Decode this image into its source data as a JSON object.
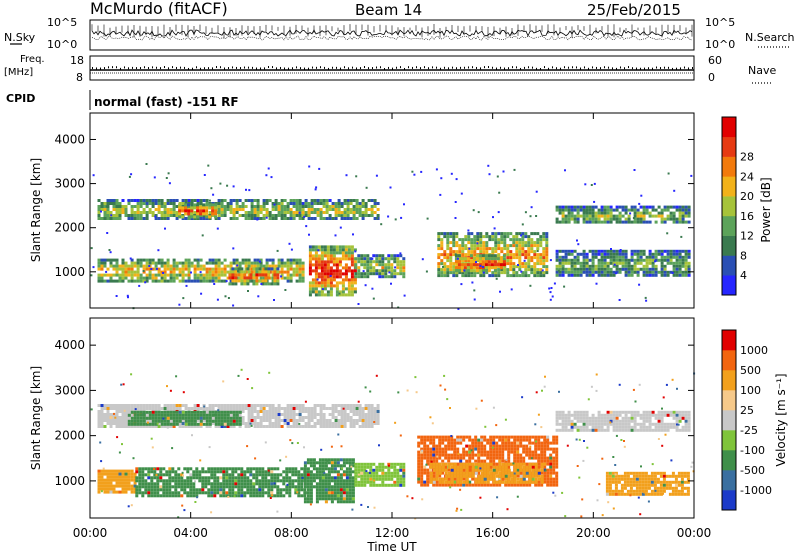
{
  "header": {
    "station": "McMurdo (fitACF)",
    "beam": "Beam 14",
    "date": "25/Feb/2015"
  },
  "summary_panels": {
    "nsky_label": "N.Sky",
    "nsearch_label": "N.Search",
    "scale_top": "10^5",
    "scale_bottom": "10^0",
    "freq_label_1": "Freq.",
    "freq_label_2": "[MHz]",
    "freq_ticks": [
      "18",
      "8"
    ],
    "nave_label": "Nave",
    "nave_ticks": [
      "60",
      "0"
    ],
    "cpid_label": "CPID",
    "cpid_value": "normal (fast) -151 RF"
  },
  "chart_data": [
    {
      "type": "heatmap",
      "name": "Power",
      "xlabel": "Time UT",
      "ylabel": "Slant Range [km]",
      "xlim": [
        "00:00",
        "24:00"
      ],
      "x_ticks": [
        "00:00",
        "04:00",
        "08:00",
        "12:00",
        "16:00",
        "20:00",
        "00:00"
      ],
      "ylim": [
        180,
        4600
      ],
      "y_ticks": [
        "1000",
        "2000",
        "3000",
        "4000"
      ],
      "colorbar": {
        "label": "Power [dB]",
        "ticks": [
          "4",
          "8",
          "12",
          "16",
          "20",
          "24",
          "28"
        ],
        "colors": [
          "#2626ff",
          "#2a4fb4",
          "#3a7a4f",
          "#5ca35a",
          "#a6c33a",
          "#f2b21a",
          "#f27a0c",
          "#e63a12",
          "#e10000"
        ]
      },
      "bands": [
        {
          "t0": 0.3,
          "t1": 11.5,
          "r0": 2200,
          "r1": 2650,
          "level": 0.55
        },
        {
          "t0": 3.5,
          "t1": 5.0,
          "r0": 2250,
          "r1": 2550,
          "level": 0.95
        },
        {
          "t0": 0.3,
          "t1": 8.5,
          "r0": 800,
          "r1": 1300,
          "level": 0.7
        },
        {
          "t0": 5.5,
          "t1": 7.5,
          "r0": 750,
          "r1": 1100,
          "level": 0.9
        },
        {
          "t0": 8.7,
          "t1": 10.5,
          "r0": 500,
          "r1": 1600,
          "level": 1.0
        },
        {
          "t0": 10.5,
          "t1": 12.5,
          "r0": 900,
          "r1": 1400,
          "level": 0.55
        },
        {
          "t0": 13.8,
          "t1": 18.2,
          "r0": 900,
          "r1": 1900,
          "level": 0.75
        },
        {
          "t0": 14.5,
          "t1": 16.5,
          "r0": 1000,
          "r1": 1400,
          "level": 0.92
        },
        {
          "t0": 18.5,
          "t1": 23.8,
          "r0": 2100,
          "r1": 2500,
          "level": 0.45
        },
        {
          "t0": 18.5,
          "t1": 23.8,
          "r0": 900,
          "r1": 1500,
          "level": 0.4
        }
      ]
    },
    {
      "type": "heatmap",
      "name": "Velocity",
      "xlabel": "Time UT",
      "ylabel": "Slant Range [km]",
      "xlim": [
        "00:00",
        "24:00"
      ],
      "x_ticks": [
        "00:00",
        "04:00",
        "08:00",
        "12:00",
        "16:00",
        "20:00",
        "00:00"
      ],
      "ylim": [
        180,
        4600
      ],
      "y_ticks": [
        "1000",
        "2000",
        "3000",
        "4000"
      ],
      "colorbar": {
        "label": "Velocity [m s⁻¹]",
        "ticks": [
          "1000",
          "500",
          "100",
          "25",
          "-25",
          "-100",
          "-500",
          "-1000"
        ],
        "colors": [
          "#1b3ac9",
          "#3a6fa0",
          "#3f8f4a",
          "#7fc43a",
          "#c8c8c8",
          "#f6c98a",
          "#f2a01c",
          "#f2650f",
          "#e10000"
        ]
      },
      "bands": [
        {
          "t0": 0.3,
          "t1": 11.5,
          "r0": 2200,
          "r1": 2700,
          "color": "#c8c8c8"
        },
        {
          "t0": 1.5,
          "t1": 6.0,
          "r0": 2250,
          "r1": 2550,
          "color": "#3f8f4a"
        },
        {
          "t0": 0.3,
          "t1": 1.8,
          "r0": 750,
          "r1": 1250,
          "color": "#f2a01c"
        },
        {
          "t0": 1.8,
          "t1": 8.5,
          "r0": 650,
          "r1": 1300,
          "color": "#3f8f4a"
        },
        {
          "t0": 8.5,
          "t1": 10.5,
          "r0": 550,
          "r1": 1500,
          "color": "#3f8f4a"
        },
        {
          "t0": 10.5,
          "t1": 12.5,
          "r0": 900,
          "r1": 1400,
          "color": "#7fc43a"
        },
        {
          "t0": 13.0,
          "t1": 18.5,
          "r0": 900,
          "r1": 2000,
          "color": "#f2650f"
        },
        {
          "t0": 13.5,
          "t1": 18.0,
          "r0": 1000,
          "r1": 1400,
          "color": "#f2a01c"
        },
        {
          "t0": 18.5,
          "t1": 23.8,
          "r0": 2100,
          "r1": 2550,
          "color": "#c8c8c8"
        },
        {
          "t0": 20.5,
          "t1": 23.8,
          "r0": 700,
          "r1": 1200,
          "color": "#f2a01c"
        }
      ]
    }
  ]
}
